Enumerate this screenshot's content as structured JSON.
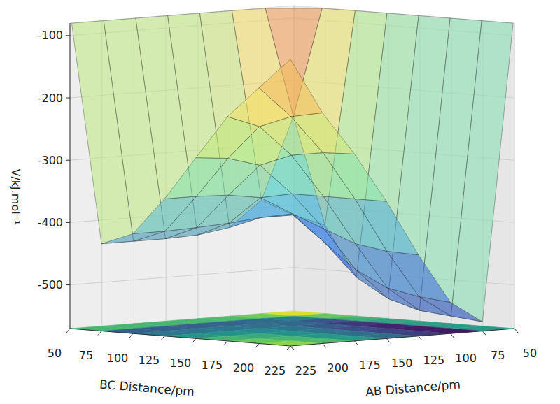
{
  "chart_data": {
    "type": "surface",
    "xlabel": "AB Distance/pm",
    "ylabel": "BC Distance/pm",
    "zlabel": "V/kJ.mol⁻¹",
    "x": [
      50,
      75,
      100,
      125,
      150,
      175,
      200,
      225
    ],
    "y": [
      50,
      75,
      100,
      125,
      150,
      175,
      200,
      225
    ],
    "z": [
      [
        -60,
        -60,
        -60,
        -60,
        -60,
        -60,
        -60,
        -60
      ],
      [
        -60,
        -250,
        -380,
        -420,
        -428,
        -430,
        -430,
        -430
      ],
      [
        -60,
        -420,
        -400,
        -400,
        -405,
        -408,
        -410,
        -410
      ],
      [
        -60,
        -500,
        -440,
        -390,
        -360,
        -352,
        -350,
        -350
      ],
      [
        -60,
        -530,
        -480,
        -410,
        -350,
        -300,
        -285,
        -280
      ],
      [
        -60,
        -545,
        -505,
        -430,
        -350,
        -280,
        -230,
        -210
      ],
      [
        -60,
        -550,
        -515,
        -438,
        -350,
        -272,
        -210,
        -160
      ],
      [
        -60,
        -555,
        -520,
        -440,
        -350,
        -270,
        -200,
        -110
      ]
    ],
    "xlim": [
      50,
      225
    ],
    "ylim": [
      50,
      225
    ],
    "zlim": [
      -570,
      -80
    ],
    "xticks": [
      50,
      75,
      100,
      125,
      150,
      175,
      200,
      225
    ],
    "yticks": [
      50,
      75,
      100,
      125,
      150,
      175,
      200,
      225
    ],
    "zticks": [
      -500,
      -400,
      -300,
      -200,
      -100
    ],
    "grid": true
  }
}
